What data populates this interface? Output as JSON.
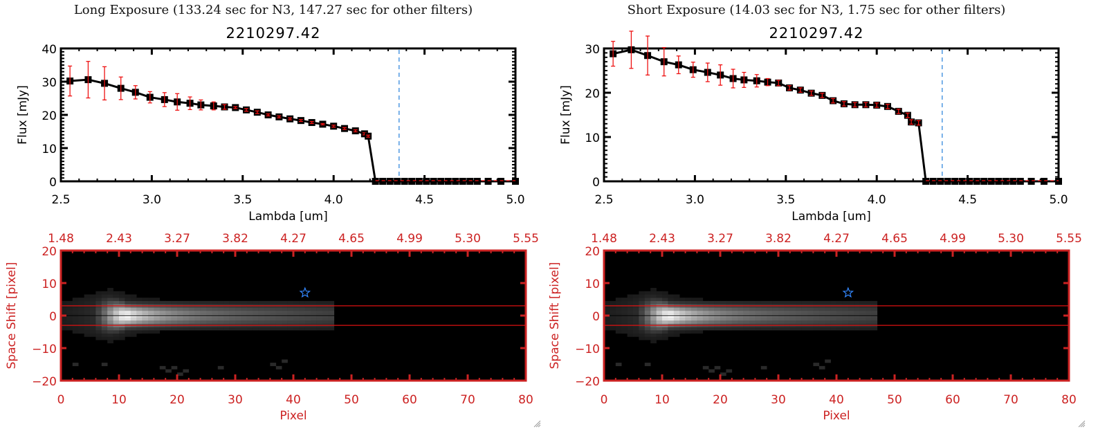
{
  "chart_data": [
    {
      "id": "long-spectrum",
      "type": "line",
      "title": "Long Exposure (133.24 sec for N3, 147.27 sec for other filters)",
      "subtitle": "2210297.42",
      "xlabel": "Lambda [um]",
      "ylabel": "Flux [mJy]",
      "xlim": [
        2.5,
        5.0
      ],
      "ylim": [
        0,
        40
      ],
      "xticks": [
        "2.5",
        "3.0",
        "3.5",
        "4.0",
        "4.5",
        "5.0"
      ],
      "xtick_values": [
        2.5,
        3.0,
        3.5,
        4.0,
        4.5,
        5.0
      ],
      "yticks": [
        "0",
        "10",
        "20",
        "30",
        "40"
      ],
      "ytick_values": [
        0,
        10,
        20,
        30,
        40
      ],
      "vline_x": 4.36,
      "series": [
        {
          "name": "flux",
          "x": [
            2.55,
            2.65,
            2.74,
            2.83,
            2.91,
            2.99,
            3.07,
            3.14,
            3.21,
            3.27,
            3.34,
            3.4,
            3.46,
            3.52,
            3.58,
            3.64,
            3.7,
            3.76,
            3.82,
            3.88,
            3.94,
            4.0,
            4.06,
            4.12,
            4.17,
            4.19,
            4.23,
            4.27,
            4.31,
            4.35,
            4.39,
            4.43,
            4.47,
            4.51,
            4.55,
            4.59,
            4.63,
            4.67,
            4.71,
            4.75,
            4.79,
            4.85,
            4.92,
            5.0
          ],
          "y": [
            30.2,
            30.6,
            29.5,
            28.0,
            26.8,
            25.3,
            24.6,
            23.9,
            23.5,
            23.0,
            22.7,
            22.4,
            22.2,
            21.5,
            20.8,
            20.0,
            19.4,
            18.8,
            18.3,
            17.7,
            17.2,
            16.6,
            15.9,
            15.2,
            14.3,
            13.6,
            0,
            0,
            0,
            0,
            0,
            0,
            0,
            0,
            0,
            0,
            0,
            0,
            0,
            0,
            0,
            0,
            0,
            0
          ],
          "yerr": [
            4.5,
            5.5,
            5.0,
            3.4,
            2.0,
            1.7,
            2.1,
            2.5,
            1.9,
            1.5,
            1.2,
            0.7,
            0.3,
            0.4,
            0.4,
            0.3,
            0.3,
            0.3,
            0.3,
            0.3,
            0.2,
            0.3,
            0.3,
            0.3,
            0.3,
            0.3,
            0,
            0,
            0,
            0,
            0,
            0,
            0,
            0,
            0,
            0,
            0,
            0,
            0,
            0,
            0,
            0,
            0,
            0
          ]
        }
      ]
    },
    {
      "id": "short-spectrum",
      "type": "line",
      "title": "Short Exposure (14.03 sec for N3, 1.75 sec for other filters)",
      "subtitle": "2210297.42",
      "xlabel": "Lambda [um]",
      "ylabel": "Flux [mJy]",
      "xlim": [
        2.5,
        5.0
      ],
      "ylim": [
        0,
        30
      ],
      "xticks": [
        "2.5",
        "3.0",
        "3.5",
        "4.0",
        "4.5",
        "5.0"
      ],
      "xtick_values": [
        2.5,
        3.0,
        3.5,
        4.0,
        4.5,
        5.0
      ],
      "yticks": [
        "0",
        "10",
        "20",
        "30"
      ],
      "ytick_values": [
        0,
        10,
        20,
        30
      ],
      "vline_x": 4.36,
      "series": [
        {
          "name": "flux",
          "x": [
            2.55,
            2.65,
            2.74,
            2.83,
            2.91,
            2.99,
            3.07,
            3.14,
            3.21,
            3.27,
            3.34,
            3.4,
            3.46,
            3.52,
            3.58,
            3.64,
            3.7,
            3.76,
            3.82,
            3.88,
            3.94,
            4.0,
            4.06,
            4.12,
            4.17,
            4.19,
            4.23,
            4.27,
            4.31,
            4.35,
            4.39,
            4.43,
            4.47,
            4.51,
            4.55,
            4.59,
            4.63,
            4.67,
            4.71,
            4.75,
            4.79,
            4.85,
            4.92,
            5.0
          ],
          "y": [
            28.8,
            29.7,
            28.4,
            27.0,
            26.3,
            25.2,
            24.6,
            24.0,
            23.2,
            22.9,
            22.7,
            22.4,
            22.2,
            21.1,
            20.6,
            19.9,
            19.4,
            18.2,
            17.5,
            17.3,
            17.3,
            17.2,
            16.9,
            15.8,
            14.9,
            13.4,
            13.2,
            0,
            0,
            0,
            0,
            0,
            0,
            0,
            0,
            0,
            0,
            0,
            0,
            0,
            0,
            0,
            0,
            0
          ],
          "yerr": [
            2.8,
            4.2,
            4.4,
            3.2,
            2.0,
            1.7,
            2.1,
            2.3,
            2.1,
            1.7,
            1.4,
            0.8,
            0.6,
            0.5,
            0.5,
            0.5,
            0.5,
            0.5,
            0.5,
            0.5,
            0.5,
            0.5,
            0.5,
            0.5,
            0.5,
            0.5,
            0.5,
            0,
            0,
            0,
            0,
            0,
            0,
            0,
            0,
            0,
            0,
            0,
            0,
            0,
            0,
            0,
            0,
            0
          ]
        }
      ]
    },
    {
      "id": "long-image",
      "type": "heatmap",
      "xlabel": "Pixel",
      "ylabel": "Space Shift [pixel]",
      "xlim": [
        0,
        80
      ],
      "ylim": [
        -20,
        20
      ],
      "xticks": [
        "0",
        "10",
        "20",
        "30",
        "40",
        "50",
        "60",
        "70",
        "80"
      ],
      "xtick_values": [
        0,
        10,
        20,
        30,
        40,
        50,
        60,
        70,
        80
      ],
      "yticks": [
        "-20",
        "-10",
        "0",
        "10",
        "20"
      ],
      "ytick_values": [
        -20,
        -10,
        0,
        10,
        20
      ],
      "top_xticks": [
        "1.48",
        "2.43",
        "3.27",
        "3.82",
        "4.27",
        "4.65",
        "4.99",
        "5.30",
        "5.55"
      ],
      "aperture_lines": [
        3,
        -3
      ],
      "star_marker": {
        "x": 42,
        "y": 7
      },
      "source_extent": {
        "x_end": 47,
        "peak_x": 11,
        "peak_y": 0
      }
    },
    {
      "id": "short-image",
      "type": "heatmap",
      "xlabel": "Pixel",
      "ylabel": "Space Shift [pixel]",
      "xlim": [
        0,
        80
      ],
      "ylim": [
        -20,
        20
      ],
      "xticks": [
        "0",
        "10",
        "20",
        "30",
        "40",
        "50",
        "60",
        "70",
        "80"
      ],
      "xtick_values": [
        0,
        10,
        20,
        30,
        40,
        50,
        60,
        70,
        80
      ],
      "yticks": [
        "-20",
        "-10",
        "0",
        "10",
        "20"
      ],
      "ytick_values": [
        -20,
        -10,
        0,
        10,
        20
      ],
      "top_xticks": [
        "1.48",
        "2.43",
        "3.27",
        "3.82",
        "4.27",
        "4.65",
        "4.99",
        "5.30",
        "5.55"
      ],
      "aperture_lines": [
        3,
        -3
      ],
      "star_marker": {
        "x": 42,
        "y": 7
      },
      "source_extent": {
        "x_end": 47,
        "peak_x": 11,
        "peak_y": 0
      }
    }
  ],
  "panels": {
    "left": {
      "title": "Long Exposure (133.24 sec for N3, 147.27 sec for other filters)",
      "object_id": "2210297.42"
    },
    "right": {
      "title": "Short Exposure (14.03 sec for N3, 1.75 sec for other filters)",
      "object_id": "2210297.42"
    }
  },
  "colors": {
    "axis_red": "#cc2222",
    "errorbar_red": "#ee1111",
    "vline_blue": "#3388dd",
    "star_blue": "#3388ff",
    "line_black": "#000000"
  }
}
